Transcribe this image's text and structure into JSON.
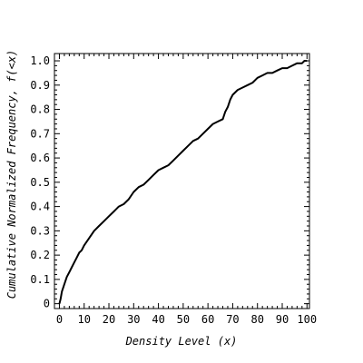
{
  "chart_data": {
    "type": "line",
    "title": "",
    "xlabel": "Density Level (x)",
    "ylabel": "Cumulative Normalized Frequency, f(<x)",
    "xlim": [
      -2,
      101
    ],
    "ylim": [
      -0.02,
      1.03
    ],
    "x_ticks": [
      0,
      10,
      20,
      30,
      40,
      50,
      60,
      70,
      80,
      90,
      100
    ],
    "x_tick_labels": [
      "0",
      "10",
      "20",
      "30",
      "40",
      "50",
      "60",
      "70",
      "80",
      "90",
      "100"
    ],
    "y_ticks": [
      0,
      0.1,
      0.2,
      0.3,
      0.4,
      0.5,
      0.6,
      0.7,
      0.8,
      0.9,
      1.0
    ],
    "y_tick_labels": [
      "0",
      "0.1",
      "0.2",
      "0.3",
      "0.4",
      "0.5",
      "0.6",
      "0.7",
      "0.8",
      "0.9",
      "1.0"
    ],
    "grid": false,
    "legend": "none",
    "line_color": "#000000",
    "series": [
      {
        "x": [
          0,
          0.5,
          1,
          2,
          3,
          4,
          5,
          6,
          7,
          8,
          9,
          10,
          12,
          14,
          16,
          18,
          20,
          22,
          24,
          26,
          28,
          30,
          32,
          34,
          36,
          38,
          40,
          42,
          44,
          46,
          48,
          50,
          52,
          54,
          56,
          58,
          60,
          62,
          64,
          66,
          67,
          68,
          69,
          70,
          72,
          74,
          76,
          78,
          80,
          82,
          84,
          86,
          88,
          90,
          92,
          94,
          96,
          98,
          99,
          100
        ],
        "y": [
          0,
          0.02,
          0.05,
          0.08,
          0.11,
          0.13,
          0.15,
          0.17,
          0.19,
          0.21,
          0.22,
          0.24,
          0.27,
          0.3,
          0.32,
          0.34,
          0.36,
          0.38,
          0.4,
          0.41,
          0.43,
          0.46,
          0.48,
          0.49,
          0.51,
          0.53,
          0.55,
          0.56,
          0.57,
          0.59,
          0.61,
          0.63,
          0.65,
          0.67,
          0.68,
          0.7,
          0.72,
          0.74,
          0.75,
          0.76,
          0.79,
          0.81,
          0.84,
          0.86,
          0.88,
          0.89,
          0.9,
          0.91,
          0.93,
          0.94,
          0.95,
          0.95,
          0.96,
          0.97,
          0.97,
          0.98,
          0.99,
          0.99,
          1.0,
          1.0
        ]
      }
    ]
  }
}
